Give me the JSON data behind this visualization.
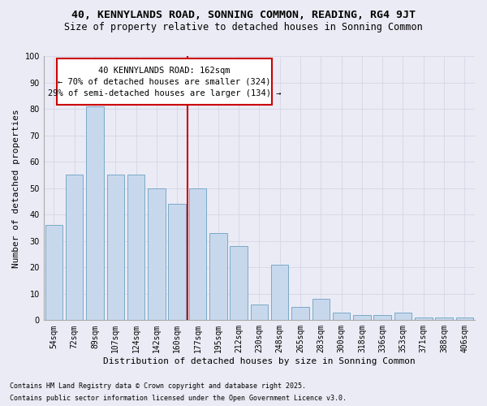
{
  "title": "40, KENNYLANDS ROAD, SONNING COMMON, READING, RG4 9JT",
  "subtitle": "Size of property relative to detached houses in Sonning Common",
  "xlabel": "Distribution of detached houses by size in Sonning Common",
  "ylabel": "Number of detached properties",
  "footnote1": "Contains HM Land Registry data © Crown copyright and database right 2025.",
  "footnote2": "Contains public sector information licensed under the Open Government Licence v3.0.",
  "annotation_line1": "40 KENNYLANDS ROAD: 162sqm",
  "annotation_line2": "← 70% of detached houses are smaller (324)",
  "annotation_line3": "29% of semi-detached houses are larger (134) →",
  "bar_color": "#c8d8ec",
  "bar_edge_color": "#7aaac8",
  "vline_color": "#cc0000",
  "categories": [
    "54sqm",
    "72sqm",
    "89sqm",
    "107sqm",
    "124sqm",
    "142sqm",
    "160sqm",
    "177sqm",
    "195sqm",
    "212sqm",
    "230sqm",
    "248sqm",
    "265sqm",
    "283sqm",
    "300sqm",
    "318sqm",
    "336sqm",
    "353sqm",
    "371sqm",
    "388sqm",
    "406sqm"
  ],
  "values": [
    36,
    55,
    81,
    55,
    55,
    50,
    44,
    50,
    33,
    28,
    6,
    21,
    5,
    8,
    3,
    2,
    2,
    3,
    1,
    1,
    1
  ],
  "ylim": [
    0,
    100
  ],
  "yticks": [
    0,
    10,
    20,
    30,
    40,
    50,
    60,
    70,
    80,
    90,
    100
  ],
  "grid_color": "#d8d8e8",
  "bg_color": "#ebebf5",
  "title_fontsize": 9.5,
  "subtitle_fontsize": 8.5,
  "label_fontsize": 8.0,
  "annotation_fontsize": 7.5,
  "tick_fontsize": 7.0,
  "footnote_fontsize": 6.0
}
